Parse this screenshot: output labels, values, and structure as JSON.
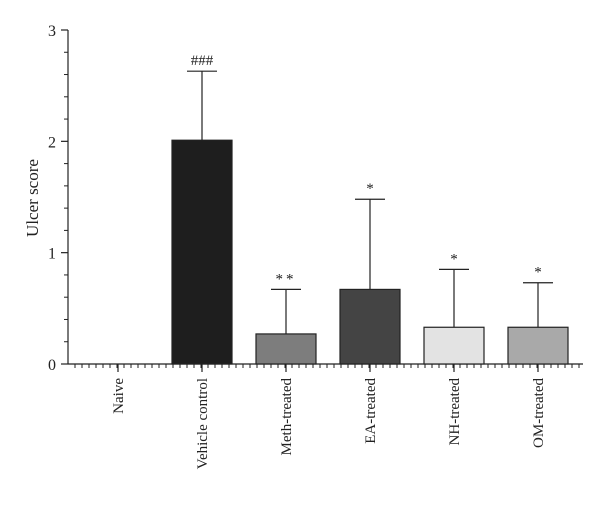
{
  "chart_data": {
    "type": "bar",
    "title": "",
    "xlabel": "",
    "ylabel": "Ulcer score",
    "ylim": [
      0,
      3
    ],
    "yticks": [
      "0",
      "1",
      "2",
      "3"
    ],
    "categories": [
      "Naive",
      "Vehicle control",
      "Meth-treated",
      "EA-treated",
      "NH-treated",
      "OM-treated"
    ],
    "values": [
      0,
      2.01,
      0.27,
      0.67,
      0.33,
      0.33
    ],
    "errors": [
      0,
      0.62,
      0.4,
      0.81,
      0.52,
      0.4
    ],
    "annotations": [
      "",
      "###",
      "**",
      "*",
      "*",
      "*"
    ],
    "colors": [
      "#ffffff",
      "#1e1e1e",
      "#7d7d7d",
      "#444444",
      "#e3e3e3",
      "#a9a9a9"
    ],
    "grid": false
  }
}
